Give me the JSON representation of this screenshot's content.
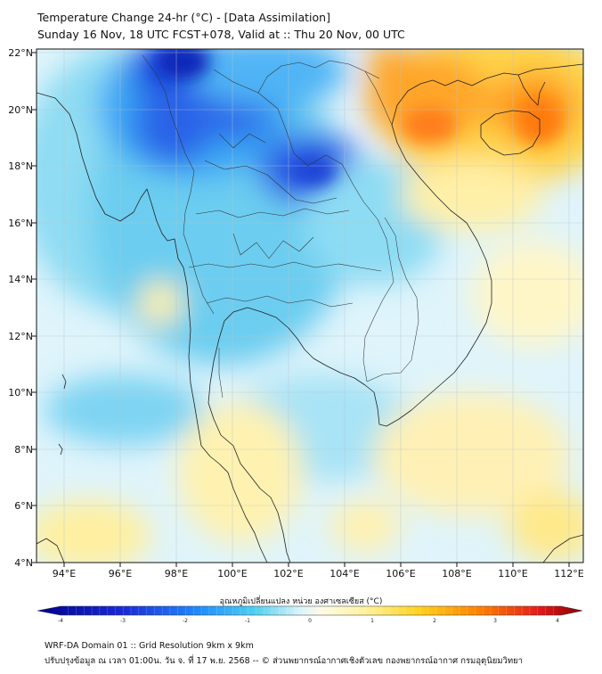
{
  "title": {
    "line1": "Temperature Change 24-hr (°C) - [Data Assimilation]",
    "line2": "Sunday 16 Nov, 18 UTC FCST+078, Valid at :: Thu 20 Nov, 00 UTC"
  },
  "map": {
    "lat_labels": [
      "22°N",
      "20°N",
      "18°N",
      "16°N",
      "14°N",
      "12°N",
      "10°N",
      "8°N",
      "6°N",
      "4°N"
    ],
    "lon_labels": [
      "94°E",
      "96°E",
      "98°E",
      "100°E",
      "102°E",
      "104°E",
      "106°E",
      "108°E",
      "110°E",
      "112°E"
    ],
    "lat_range": [
      4,
      22
    ],
    "lon_range": [
      93,
      112.5
    ],
    "units": "°C"
  },
  "colorbar": {
    "label": "อุณหภูมิเปลี่ยนแปลง หน่วย องศาเซลเซียส (°C)",
    "ticks": [
      "-4",
      "-3",
      "-2",
      "-1",
      "0",
      "1",
      "2",
      "3",
      "4"
    ],
    "range": [
      -4,
      4
    ]
  },
  "colors": {
    "cold_max": "#00008b",
    "cold": "#1e90ff",
    "cool": "#4fd0f0",
    "neutral": "#ffffff",
    "warm": "#ffe24a",
    "hot": "#ff8c00",
    "hot_max": "#8b0000"
  },
  "footer": {
    "line1": "WRF-DA Domain 01 :: Grid Resolution 9km x 9km",
    "line2": "ปรับปรุงข้อมูล ณ เวลา 01:00น. วัน จ. ที่ 17 พ.ย. 2568 -- © ส่วนพยากรณ์อากาศเชิงตัวเลข กองพยากรณ์อากาศ กรมอุตุนิยมวิทยา"
  }
}
